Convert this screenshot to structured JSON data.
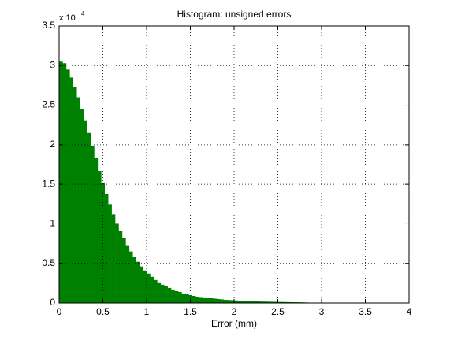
{
  "chart_data": {
    "type": "histogram",
    "title": "Histogram: unsigned errors",
    "x_label": "Error (mm)",
    "y_multiplier": "x 10",
    "y_multiplier_exponent": "4",
    "bins": [
      0,
      0.04,
      0.08,
      0.12,
      0.16,
      0.2,
      0.24,
      0.28,
      0.32,
      0.36,
      0.4,
      0.44,
      0.48,
      0.52,
      0.56,
      0.6,
      0.64,
      0.68,
      0.72,
      0.76,
      0.8,
      0.84,
      0.88,
      0.92,
      0.96,
      1,
      1.04,
      1.08,
      1.12,
      1.16,
      1.2,
      1.24,
      1.28,
      1.32,
      1.36,
      1.4,
      1.44,
      1.48,
      1.52,
      1.56,
      1.6,
      1.64,
      1.68,
      1.72,
      1.76,
      1.8,
      1.84,
      1.88,
      1.92,
      1.96,
      2,
      2.04,
      2.08,
      2.12,
      2.16,
      2.2,
      2.24,
      2.28,
      2.32,
      2.36,
      2.4,
      2.44,
      2.48,
      2.52,
      2.56,
      2.6,
      2.64,
      2.68,
      2.72,
      2.76,
      2.8,
      2.84
    ],
    "values": [
      3.05,
      3.03,
      2.95,
      2.85,
      2.73,
      2.6,
      2.45,
      2.3,
      2.15,
      1.99,
      1.83,
      1.67,
      1.52,
      1.38,
      1.25,
      1.12,
      1.01,
      0.91,
      0.82,
      0.73,
      0.65,
      0.58,
      0.52,
      0.46,
      0.41,
      0.37,
      0.33,
      0.29,
      0.26,
      0.23,
      0.21,
      0.19,
      0.17,
      0.15,
      0.14,
      0.12,
      0.11,
      0.1,
      0.09,
      0.08,
      0.075,
      0.07,
      0.065,
      0.06,
      0.055,
      0.05,
      0.045,
      0.04,
      0.038,
      0.035,
      0.032,
      0.03,
      0.028,
      0.026,
      0.024,
      0.022,
      0.02,
      0.019,
      0.018,
      0.017,
      0.016,
      0.015,
      0.014,
      0.013,
      0.012,
      0.011,
      0.01,
      0.01,
      0.009,
      0.008,
      0.007
    ],
    "color": "#008000",
    "xlim": [
      0,
      4
    ],
    "xticks": [
      0,
      0.5,
      1,
      1.5,
      2,
      2.5,
      3,
      3.5,
      4
    ],
    "ylim": [
      0,
      3.5
    ],
    "yticks": [
      0,
      0.5,
      1,
      1.5,
      2,
      2.5,
      3,
      3.5
    ],
    "grid": true
  }
}
